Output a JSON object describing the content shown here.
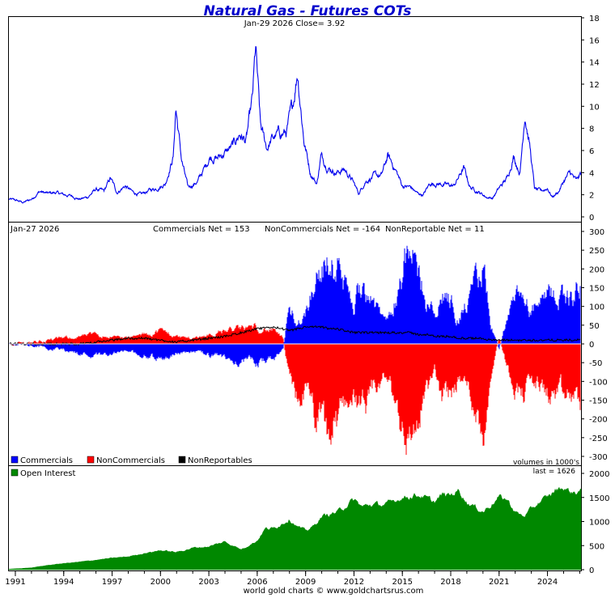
{
  "title": "Natural Gas - Futures COTs",
  "footer": "world gold charts © www.goldchartsrus.com",
  "colors": {
    "price": "#0000ee",
    "commercials": "#0000ff",
    "noncommercials": "#ff0000",
    "nonreportables": "#000000",
    "open_interest": "#008800",
    "title": "#0000cc",
    "frame": "#000000"
  },
  "x_axis": {
    "tick_labels": [
      "1991",
      "1994",
      "1997",
      "2000",
      "2003",
      "2006",
      "2009",
      "2012",
      "2015",
      "2018",
      "2021",
      "2024"
    ]
  },
  "price_panel": {
    "header": "Jan-29  2026   Close= 3.92",
    "close": 3.92,
    "y_ticks": [
      "18",
      "16",
      "14",
      "12",
      "10",
      "8",
      "6",
      "4",
      "2",
      "0"
    ]
  },
  "cot_panel": {
    "date": "Jan-27  2026",
    "commercials_text": "Commercials Net = 153",
    "noncommercials_text": "NonCommercials Net = -164",
    "nonreportables_text": "NonReportable Net = 11",
    "commercials_net": 153,
    "noncommercials_net": -164,
    "nonreportables_net": 11,
    "y_ticks": [
      "300",
      "250",
      "200",
      "150",
      "100",
      "50",
      "0",
      "-50",
      "-100",
      "-150",
      "-200",
      "-250",
      "-300"
    ],
    "legend": [
      "Commercials",
      "NonCommercials",
      "NonReportables"
    ],
    "units_note": "volumes in 1000's"
  },
  "oi_panel": {
    "legend": "Open Interest",
    "last_text": "last = 1626",
    "last": 1626,
    "y_ticks": [
      "2000",
      "1500",
      "1000",
      "500",
      "0"
    ]
  },
  "chart_data": [
    {
      "type": "line",
      "name": "price",
      "title": "Natural Gas - Futures COTs",
      "x_range": [
        1990.6,
        2026.08
      ],
      "ylim": [
        0,
        18
      ],
      "x": [
        1990.6,
        1991.0,
        1991.5,
        1992.0,
        1992.5,
        1993.0,
        1993.5,
        1994.0,
        1994.5,
        1995.0,
        1995.5,
        1996.0,
        1996.5,
        1996.9,
        1997.3,
        1997.8,
        1998.3,
        1998.8,
        1999.3,
        1999.8,
        2000.3,
        2000.8,
        2000.95,
        2001.3,
        2001.7,
        2002.3,
        2002.8,
        2003.1,
        2003.5,
        2004.0,
        2004.5,
        2004.9,
        2005.3,
        2005.7,
        2005.9,
        2006.2,
        2006.6,
        2006.9,
        2007.3,
        2007.8,
        2008.2,
        2008.5,
        2008.9,
        2009.3,
        2009.7,
        2009.95,
        2010.4,
        2010.9,
        2011.4,
        2011.9,
        2012.3,
        2012.7,
        2013.2,
        2013.7,
        2014.1,
        2014.6,
        2015.0,
        2015.5,
        2015.95,
        2016.3,
        2016.7,
        2017.2,
        2017.7,
        2018.2,
        2018.8,
        2019.2,
        2019.7,
        2020.2,
        2020.6,
        2021.0,
        2021.5,
        2021.9,
        2022.3,
        2022.6,
        2022.9,
        2023.2,
        2023.6,
        2024.0,
        2024.3,
        2024.7,
        2025.0,
        2025.4,
        2025.8,
        2026.08
      ],
      "y": [
        1.6,
        1.5,
        1.3,
        1.6,
        2.3,
        2.1,
        2.2,
        2.0,
        1.9,
        1.6,
        1.8,
        2.5,
        2.3,
        3.5,
        2.2,
        2.8,
        2.2,
        2.0,
        2.4,
        2.6,
        3.0,
        5.5,
        9.9,
        5.2,
        2.6,
        3.2,
        4.6,
        5.5,
        5.3,
        5.8,
        6.4,
        7.5,
        6.8,
        10.5,
        15.2,
        8.0,
        6.2,
        7.0,
        7.5,
        7.6,
        10.0,
        13.3,
        7.0,
        4.0,
        3.0,
        5.5,
        4.5,
        4.0,
        4.3,
        3.3,
        2.1,
        3.2,
        3.7,
        3.7,
        5.5,
        4.2,
        2.8,
        2.7,
        2.1,
        2.0,
        3.0,
        3.0,
        2.9,
        2.8,
        4.4,
        2.7,
        2.3,
        1.8,
        1.7,
        2.6,
        3.5,
        5.5,
        4.0,
        9.5,
        6.5,
        2.5,
        2.3,
        2.6,
        1.8,
        2.3,
        3.2,
        4.0,
        3.2,
        3.92
      ]
    },
    {
      "type": "area",
      "name": "cot_net_positions",
      "x_range": [
        1990.6,
        2026.08
      ],
      "ylim": [
        -300,
        300
      ],
      "ylabel": "volumes in 1000's",
      "x": [
        1990.6,
        1992.0,
        1993.0,
        1994.0,
        1995.0,
        1996.0,
        1997.0,
        1998.0,
        1999.0,
        2000.0,
        2001.0,
        2002.0,
        2003.0,
        2004.0,
        2005.0,
        2006.0,
        2007.0,
        2007.6,
        2008.0,
        2008.5,
        2009.0,
        2009.5,
        2010.0,
        2010.5,
        2011.0,
        2011.5,
        2012.0,
        2012.5,
        2013.0,
        2013.5,
        2014.0,
        2014.5,
        2015.0,
        2015.5,
        2016.0,
        2016.5,
        2017.0,
        2017.5,
        2018.0,
        2018.5,
        2019.0,
        2019.5,
        2020.0,
        2020.5,
        2021.0,
        2021.5,
        2022.0,
        2022.5,
        2023.0,
        2023.5,
        2024.0,
        2024.5,
        2025.0,
        2025.5,
        2026.08
      ],
      "series": [
        {
          "name": "Commercials",
          "values": [
            0,
            -5,
            -10,
            -15,
            -25,
            -30,
            -25,
            -20,
            -30,
            -40,
            -25,
            -20,
            -30,
            -40,
            -45,
            -50,
            -40,
            -20,
            100,
            60,
            85,
            170,
            200,
            220,
            200,
            140,
            110,
            160,
            150,
            80,
            60,
            120,
            200,
            230,
            190,
            120,
            70,
            130,
            120,
            70,
            100,
            150,
            200,
            50,
            -15,
            70,
            110,
            120,
            90,
            100,
            120,
            130,
            140,
            120,
            153
          ]
        },
        {
          "name": "NonCommercials",
          "values": [
            0,
            5,
            10,
            15,
            20,
            25,
            20,
            15,
            25,
            35,
            20,
            15,
            25,
            35,
            40,
            45,
            35,
            15,
            -100,
            -150,
            -120,
            -190,
            -220,
            -250,
            -210,
            -150,
            -130,
            -180,
            -170,
            -110,
            -90,
            -140,
            -220,
            -250,
            -200,
            -130,
            -80,
            -140,
            -130,
            -90,
            -110,
            -160,
            -240,
            -70,
            20,
            -60,
            -110,
            -130,
            -100,
            -110,
            -130,
            -140,
            -150,
            -140,
            -164
          ]
        },
        {
          "name": "NonReportables",
          "values": [
            0,
            0,
            0,
            0,
            0,
            5,
            10,
            15,
            15,
            10,
            5,
            10,
            15,
            20,
            30,
            40,
            45,
            40,
            35,
            40,
            45,
            45,
            45,
            40,
            40,
            35,
            30,
            30,
            30,
            30,
            30,
            30,
            30,
            30,
            25,
            25,
            20,
            20,
            20,
            15,
            15,
            15,
            15,
            10,
            10,
            10,
            10,
            10,
            10,
            10,
            10,
            10,
            10,
            10,
            11
          ]
        }
      ],
      "legend": [
        "Commercials",
        "NonCommercials",
        "NonReportables"
      ]
    },
    {
      "type": "area",
      "name": "open_interest",
      "x_range": [
        1990.6,
        2026.08
      ],
      "ylim": [
        0,
        2000
      ],
      "x": [
        1990.6,
        1992.0,
        1993.0,
        1994.0,
        1995.0,
        1996.0,
        1997.0,
        1998.0,
        1999.0,
        2000.0,
        2001.0,
        2002.0,
        2003.0,
        2004.0,
        2005.0,
        2006.0,
        2006.5,
        2007.0,
        2007.5,
        2008.0,
        2008.5,
        2009.0,
        2009.5,
        2010.0,
        2011.0,
        2012.0,
        2012.5,
        2013.0,
        2014.0,
        2015.0,
        2016.0,
        2017.0,
        2017.5,
        2018.0,
        2018.5,
        2019.0,
        2020.0,
        2021.0,
        2021.5,
        2022.0,
        2022.5,
        2023.0,
        2023.5,
        2024.0,
        2024.5,
        2025.0,
        2025.5,
        2026.08
      ],
      "y": [
        10,
        40,
        90,
        130,
        160,
        200,
        240,
        270,
        340,
        400,
        360,
        450,
        480,
        580,
        420,
        600,
        850,
        850,
        950,
        1050,
        900,
        800,
        900,
        1100,
        1200,
        1450,
        1300,
        1350,
        1350,
        1500,
        1550,
        1400,
        1550,
        1550,
        1650,
        1400,
        1200,
        1500,
        1450,
        1200,
        1100,
        1250,
        1400,
        1500,
        1650,
        1700,
        1600,
        1626
      ],
      "last": 1626,
      "legend": [
        "Open Interest"
      ]
    }
  ]
}
